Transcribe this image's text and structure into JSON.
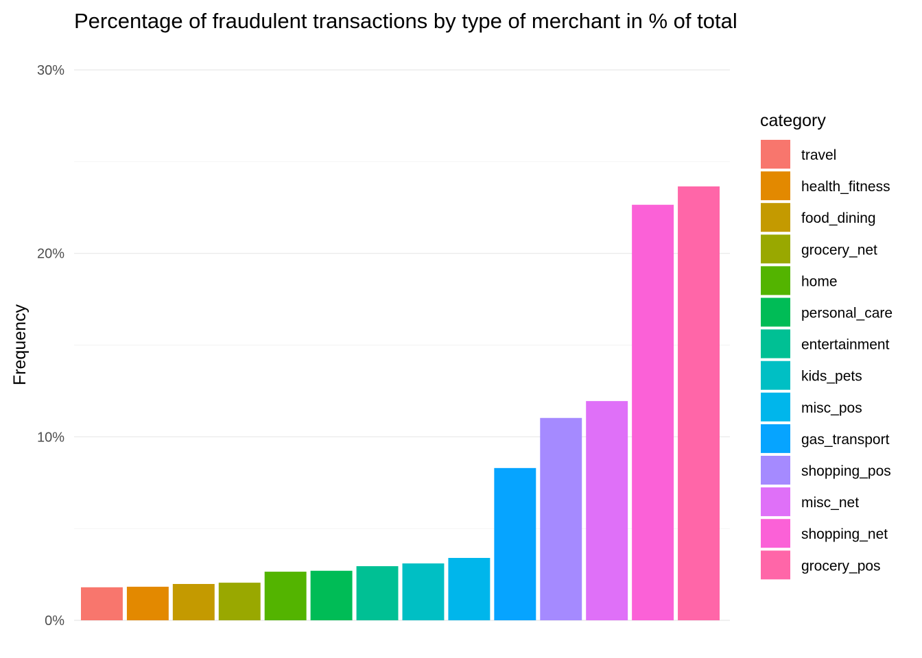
{
  "chart_data": {
    "type": "bar",
    "title": "Percentage of fraudulent transactions by type of merchant in % of total",
    "xlabel": "",
    "ylabel": "Frequency",
    "ylim": [
      0,
      30
    ],
    "yticks": [
      0,
      10,
      20,
      30
    ],
    "ytick_labels": [
      "0%",
      "10%",
      "20%",
      "30%"
    ],
    "grid": true,
    "legend": {
      "title": "category",
      "position": "right"
    },
    "categories": [
      "travel",
      "health_fitness",
      "food_dining",
      "grocery_net",
      "home",
      "personal_care",
      "entertainment",
      "kids_pets",
      "misc_pos",
      "gas_transport",
      "shopping_pos",
      "misc_net",
      "shopping_net",
      "grocery_pos"
    ],
    "values": [
      1.8,
      1.83,
      1.98,
      2.05,
      2.65,
      2.7,
      2.95,
      3.1,
      3.4,
      8.3,
      11.03,
      11.95,
      22.65,
      23.65
    ],
    "colors": [
      "#F8766D",
      "#E38900",
      "#C49A00",
      "#99A800",
      "#53B400",
      "#00BC56",
      "#00C094",
      "#00BFC4",
      "#00B6EB",
      "#06A4FF",
      "#A58AFF",
      "#DF70F8",
      "#FB61D7",
      "#FF66A8"
    ]
  }
}
